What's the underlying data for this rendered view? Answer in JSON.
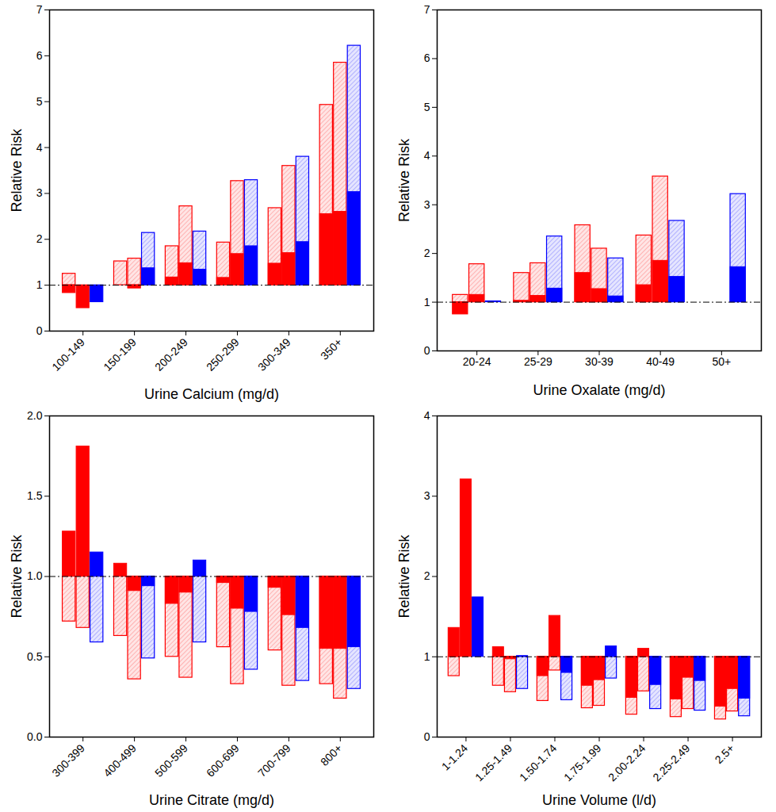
{
  "chart_data": [
    {
      "type": "bar",
      "x_label": "Urine Calcium (mg/d)",
      "y_label": "Relative Risk",
      "categories": [
        "100-149",
        "150-199",
        "200-249",
        "250-299",
        "300-349",
        "350+"
      ],
      "ylim": [
        0,
        7
      ],
      "yticks": [
        0,
        1,
        2,
        3,
        4,
        5,
        6,
        7
      ],
      "reference": 1,
      "series": [
        {
          "color": "#ff0000",
          "values": [
            0.83,
            1.0,
            1.17,
            1.16,
            1.47,
            2.55
          ],
          "ci": [
            1.25,
            1.52,
            1.85,
            1.93,
            2.68,
            4.93
          ]
        },
        {
          "color": "#ff0000",
          "values": [
            0.5,
            0.93,
            1.48,
            1.68,
            1.7,
            2.6
          ],
          "ci": [
            null,
            1.58,
            2.72,
            3.27,
            3.6,
            5.85
          ]
        },
        {
          "color": "#0000ff",
          "values": [
            0.63,
            1.37,
            1.34,
            1.85,
            1.94,
            3.03
          ],
          "ci": [
            null,
            2.14,
            2.17,
            3.29,
            3.8,
            6.22
          ]
        }
      ]
    },
    {
      "type": "bar",
      "x_label": "Urine Oxalate (mg/d)",
      "y_label": "Relative Risk",
      "categories": [
        "20-24",
        "25-29",
        "30-39",
        "40-49",
        "50+"
      ],
      "ylim": [
        0,
        7
      ],
      "yticks": [
        0,
        1,
        2,
        3,
        4,
        5,
        6,
        7
      ],
      "reference": 1,
      "series": [
        {
          "color": "#ff0000",
          "values": [
            0.75,
            1.03,
            1.6,
            1.35,
            null
          ],
          "ci": [
            1.15,
            1.6,
            2.58,
            2.37,
            null
          ]
        },
        {
          "color": "#ff0000",
          "values": [
            1.15,
            1.13,
            1.27,
            1.85,
            null
          ],
          "ci": [
            1.78,
            1.8,
            2.1,
            3.58,
            null
          ]
        },
        {
          "color": "#0000ff",
          "values": [
            1.02,
            1.28,
            1.12,
            1.52,
            1.72
          ],
          "ci": [
            null,
            2.35,
            1.9,
            2.67,
            3.22
          ]
        }
      ]
    },
    {
      "type": "bar",
      "x_label": "Urine Citrate (mg/d)",
      "y_label": "Relative Risk",
      "categories": [
        "300-399",
        "400-499",
        "500-599",
        "600-699",
        "700-799",
        "800+"
      ],
      "ylim": [
        0,
        2
      ],
      "yticks": [
        {
          "value": 0,
          "label": "0.0"
        },
        0.5,
        {
          "value": 1,
          "label": "1.0"
        },
        1.5,
        {
          "value": 2,
          "label": "2.0"
        }
      ],
      "reference": 1,
      "series": [
        {
          "color": "#ff0000",
          "values": [
            1.28,
            1.08,
            0.83,
            0.96,
            0.93,
            0.55
          ],
          "ci": [
            0.72,
            0.63,
            0.5,
            0.56,
            0.54,
            0.33
          ]
        },
        {
          "color": "#ff0000",
          "values": [
            1.81,
            0.91,
            0.9,
            0.8,
            0.76,
            0.55
          ],
          "ci": [
            0.68,
            0.36,
            0.37,
            0.33,
            0.32,
            0.24
          ]
        },
        {
          "color": "#0000ff",
          "values": [
            1.15,
            0.94,
            1.1,
            0.78,
            0.68,
            0.56
          ],
          "ci": [
            0.59,
            0.49,
            0.59,
            0.42,
            0.35,
            0.3
          ]
        }
      ]
    },
    {
      "type": "bar",
      "x_label": "Urine Volume (l/d)",
      "y_label": "Relative Risk",
      "categories": [
        "1-1.24",
        "1.25-1.49",
        "1.50-1.74",
        "1.75-1.99",
        "2.00-2.24",
        "2.25-2.49",
        "2.5+"
      ],
      "ylim": [
        0,
        4
      ],
      "yticks": [
        0,
        1,
        2,
        3,
        4
      ],
      "reference": 1,
      "series": [
        {
          "color": "#ff0000",
          "values": [
            1.36,
            1.12,
            0.76,
            0.64,
            0.49,
            0.47,
            0.38
          ],
          "ci": [
            0.76,
            0.64,
            0.45,
            0.36,
            0.28,
            0.25,
            0.22
          ]
        },
        {
          "color": "#ff0000",
          "values": [
            3.21,
            0.97,
            1.51,
            0.71,
            1.1,
            0.74,
            0.6
          ],
          "ci": [
            null,
            0.56,
            0.83,
            0.39,
            0.57,
            0.35,
            0.32
          ]
        },
        {
          "color": "#0000ff",
          "values": [
            1.74,
            1.01,
            0.8,
            1.13,
            0.65,
            0.7,
            0.48
          ],
          "ci": [
            null,
            0.6,
            0.46,
            0.73,
            0.35,
            0.33,
            0.26
          ]
        }
      ]
    }
  ]
}
